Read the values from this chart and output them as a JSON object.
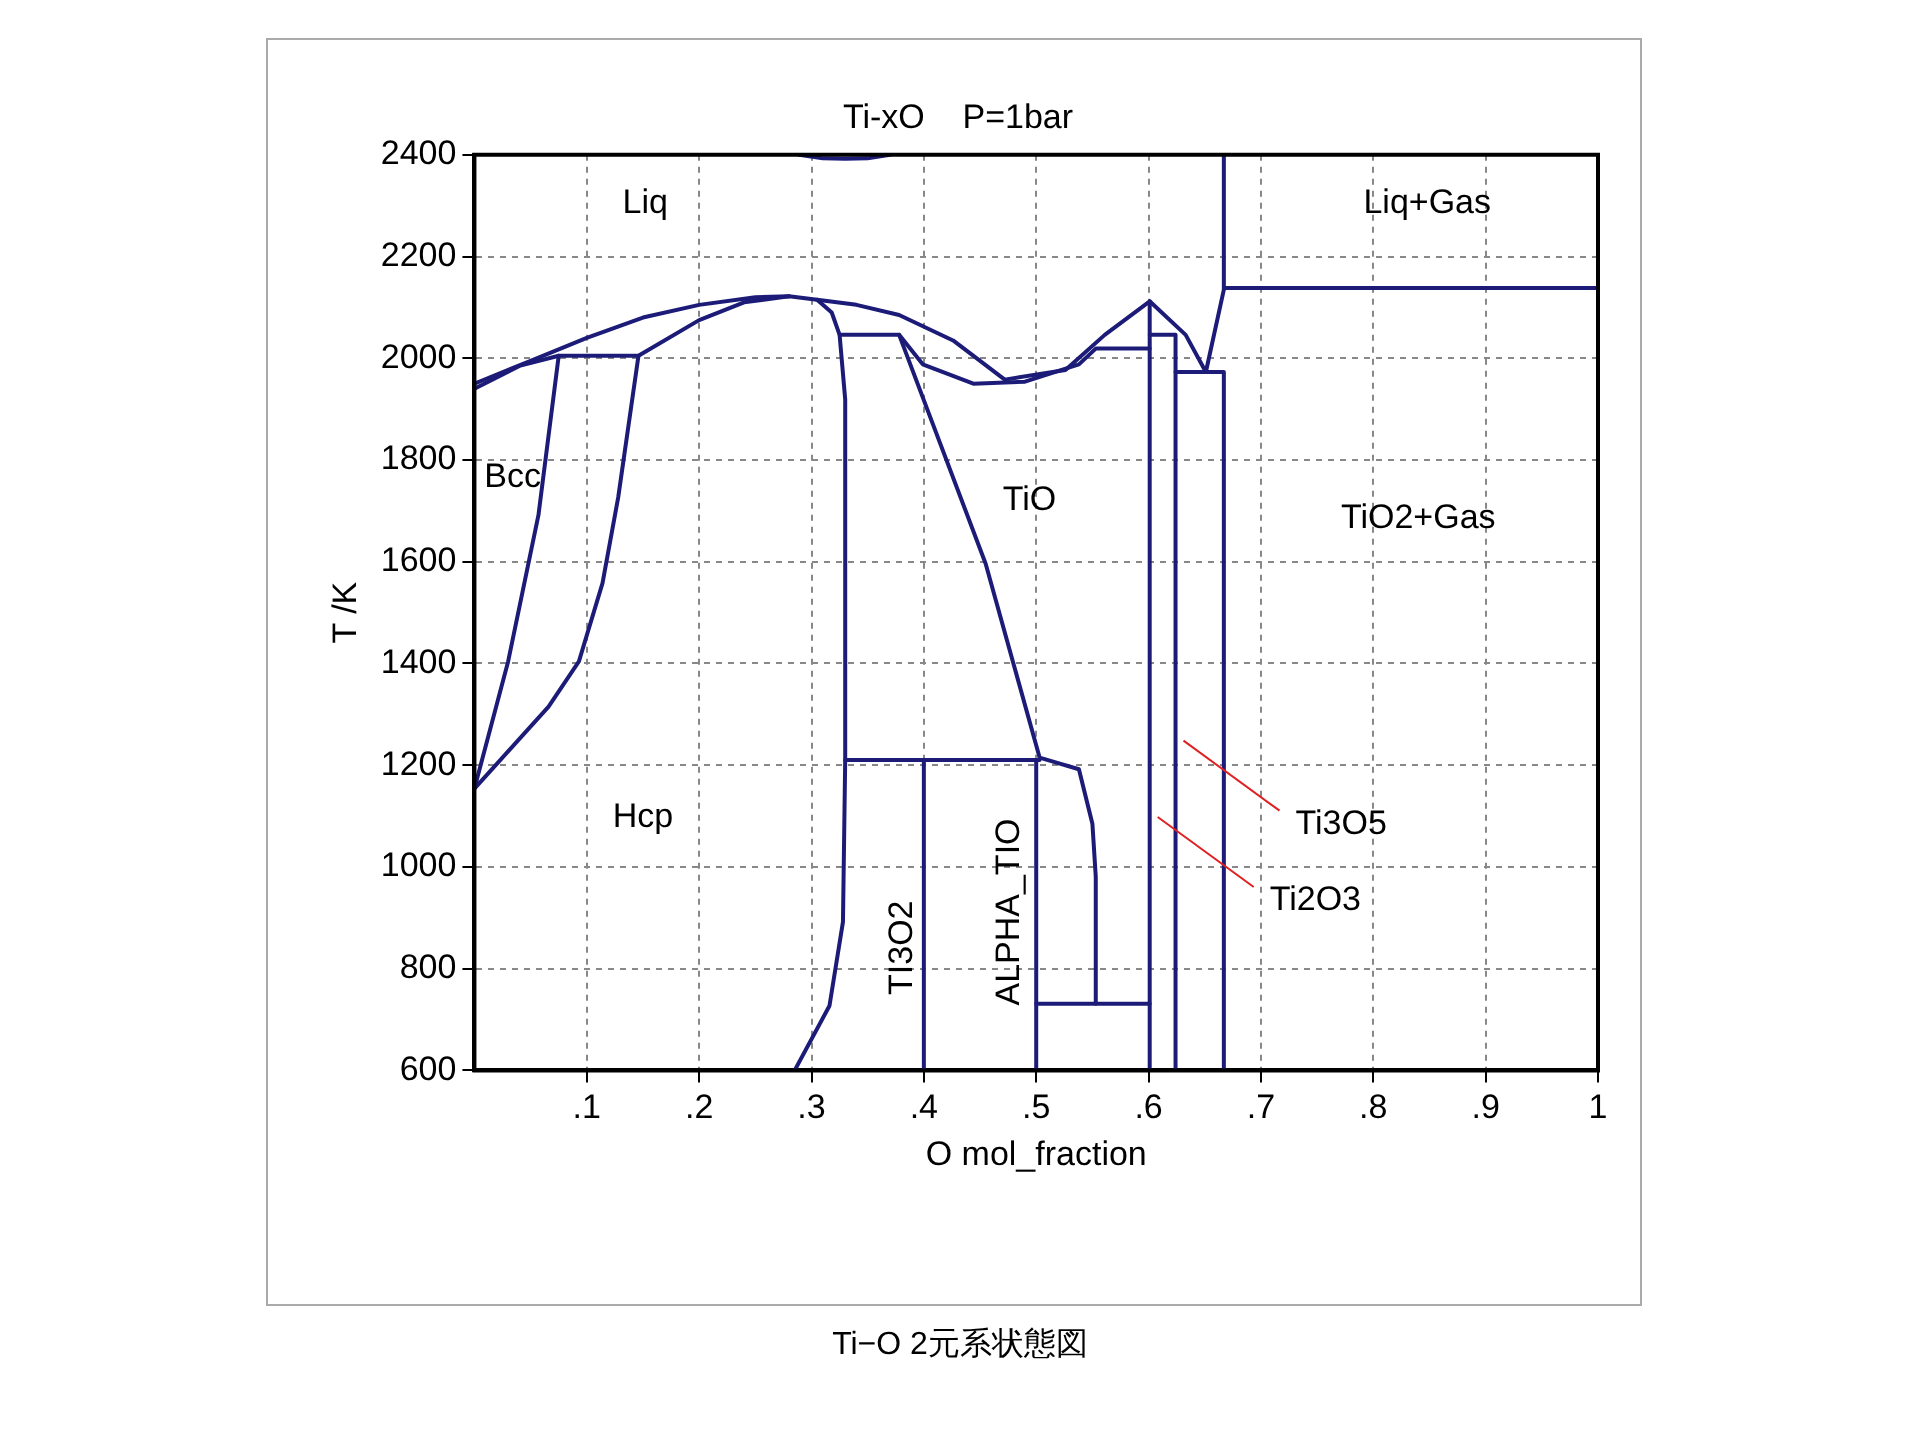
{
  "chart_data": {
    "type": "line",
    "title": "Ti-xO    P=1bar",
    "xlabel": "O mol_fraction",
    "ylabel": "T /K",
    "xlim": [
      0,
      1
    ],
    "ylim": [
      600,
      2400
    ],
    "xticks": [
      {
        "value": 0.1,
        "label": ".1"
      },
      {
        "value": 0.2,
        "label": ".2"
      },
      {
        "value": 0.3,
        "label": ".3"
      },
      {
        "value": 0.4,
        "label": ".4"
      },
      {
        "value": 0.5,
        "label": ".5"
      },
      {
        "value": 0.6,
        "label": ".6"
      },
      {
        "value": 0.7,
        "label": ".7"
      },
      {
        "value": 0.8,
        "label": ".8"
      },
      {
        "value": 0.9,
        "label": ".9"
      },
      1
    ],
    "yticks": [
      600,
      800,
      1000,
      1200,
      1400,
      1600,
      1800,
      2000,
      2200,
      2400
    ],
    "grid": true,
    "legend": false,
    "marker": "none",
    "series": [
      {
        "color": "#1c1c78",
        "x": [
          0,
          0.05,
          0.1,
          0.15,
          0.2,
          0.25,
          0.28,
          0.305,
          0.318,
          0.325,
          0.33,
          0.33,
          0.328,
          0.316,
          0.285
        ],
        "values": [
          1950,
          1995,
          2040,
          2080,
          2105,
          2120,
          2122,
          2115,
          2090,
          2046,
          1919,
          1212,
          892,
          727,
          600
        ]
      },
      {
        "color": "#1c1c78",
        "x": [
          0,
          0.04,
          0.075,
          0.146,
          0.2,
          0.24,
          0.28
        ],
        "values": [
          1940,
          1985,
          2005,
          2005,
          2075,
          2110,
          2122
        ]
      },
      {
        "color": "#1c1c78",
        "x": [
          0.075,
          0.057,
          0.03,
          0
        ],
        "values": [
          2005,
          1692,
          1404,
          1154
        ]
      },
      {
        "color": "#1c1c78",
        "x": [
          0.146,
          0.128,
          0.114,
          0.093,
          0.066,
          0
        ],
        "values": [
          2005,
          1727,
          1558,
          1404,
          1315,
          1154
        ]
      },
      {
        "color": "#1c1c78",
        "x": [
          0.305,
          0.34,
          0.378,
          0.426,
          0.472,
          0.526,
          0.561,
          0.601,
          0.633,
          0.651,
          0.667,
          0.667
        ],
        "values": [
          2115,
          2105,
          2085,
          2035,
          1958,
          1977,
          2046,
          2112,
          2046,
          1973,
          2135,
          2400
        ]
      },
      {
        "color": "#1c1c78",
        "x": [
          0.325,
          0.378,
          0.399,
          0.444,
          0.49,
          0.538,
          0.553,
          0.601
        ],
        "values": [
          2046,
          2046,
          1988,
          1950,
          1954,
          1988,
          2019,
          2019
        ]
      },
      {
        "color": "#1c1c78",
        "x": [
          0.378,
          0.455,
          0.503,
          0.538,
          0.55,
          0.553,
          0.553
        ],
        "values": [
          2046,
          1596,
          1215,
          1192,
          1085,
          981,
          731
        ]
      },
      {
        "color": "#1c1c78",
        "x": [
          0.33,
          0.503
        ],
        "values": [
          1210,
          1210
        ]
      },
      {
        "color": "#1c1c78",
        "x": [
          0.5,
          0.601
        ],
        "values": [
          731,
          731
        ]
      },
      {
        "color": "#1c1c78",
        "x": [
          0.4,
          0.4
        ],
        "values": [
          600,
          1210
        ]
      },
      {
        "color": "#1c1c78",
        "x": [
          0.5,
          0.5
        ],
        "values": [
          600,
          1210
        ]
      },
      {
        "color": "#1c1c78",
        "x": [
          0.601,
          0.601
        ],
        "values": [
          600,
          2112
        ]
      },
      {
        "color": "#1c1c78",
        "x": [
          0.624,
          0.624,
          0.601
        ],
        "values": [
          600,
          2046,
          2046
        ]
      },
      {
        "color": "#1c1c78",
        "x": [
          0.624,
          0.667,
          0.667
        ],
        "values": [
          1973,
          1973,
          600
        ]
      },
      {
        "color": "#1c1c78",
        "x": [
          0.667,
          1
        ],
        "values": [
          2138,
          2138
        ]
      },
      {
        "color": "#1c1c78",
        "x": [
          0.289,
          0.31,
          0.33,
          0.35,
          0.37
        ],
        "values": [
          2400,
          2393,
          2392,
          2393,
          2400
        ]
      }
    ],
    "annotations": [
      "Liq",
      "Liq+Gas",
      "Bcc",
      "TiO",
      "TiO2+Gas",
      "Hcp",
      "TI3O2",
      "ALPHA_TIO",
      {
        "text": "Ti3O5",
        "x": 0.624,
        "y": 1260
      },
      {
        "text": "Ti2O3",
        "x": 0.601,
        "y": 1110
      },
      "Ti−O 2元系状態図"
    ]
  }
}
